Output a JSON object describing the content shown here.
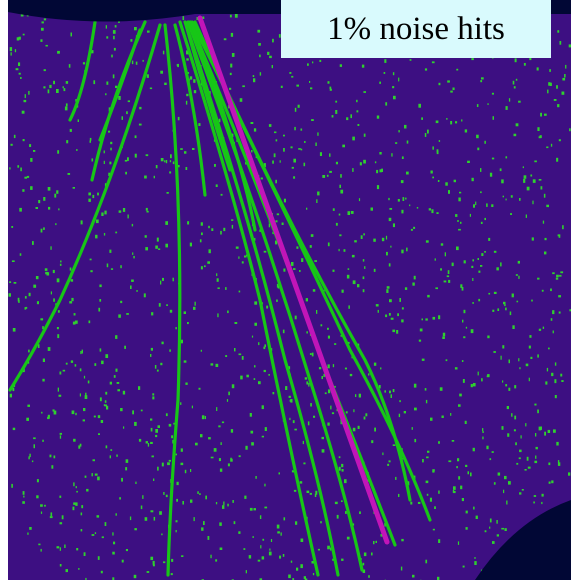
{
  "label": {
    "text": "1% noise hits"
  },
  "colors": {
    "background_outside": "#010735",
    "detector": "#3d0f82",
    "noise_hits": "#2fd12f",
    "tracks": "#17c617",
    "highlighted_track": "#c115b8",
    "label_bg": "#d9fafd"
  }
}
